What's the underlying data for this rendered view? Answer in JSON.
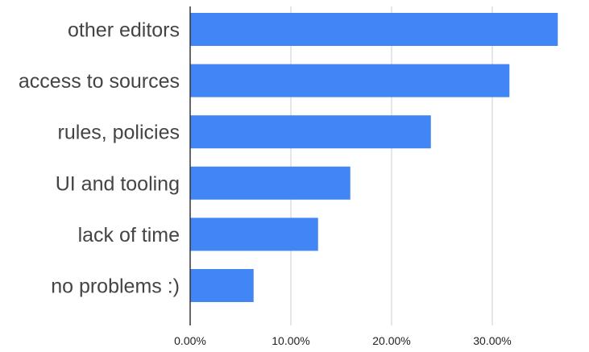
{
  "chart_data": {
    "type": "bar",
    "orientation": "horizontal",
    "categories": [
      "other editors",
      "access to sources",
      "rules, policies",
      "UI and tooling",
      "lack of time",
      "no problems :)"
    ],
    "values": [
      36.5,
      31.7,
      23.9,
      15.9,
      12.7,
      6.3
    ],
    "value_unit": "percent",
    "xlim": [
      0,
      40
    ],
    "x_ticks": [
      0,
      10,
      20,
      30
    ],
    "x_tick_labels": [
      "0.00%",
      "10.00%",
      "20.00%",
      "30.00%"
    ],
    "grid": "vertical",
    "legend": "none",
    "title": "",
    "xlabel": "",
    "ylabel": "",
    "colors": {
      "bar": "#4285f4",
      "grid": "#cccccc",
      "axis": "#333333"
    }
  }
}
